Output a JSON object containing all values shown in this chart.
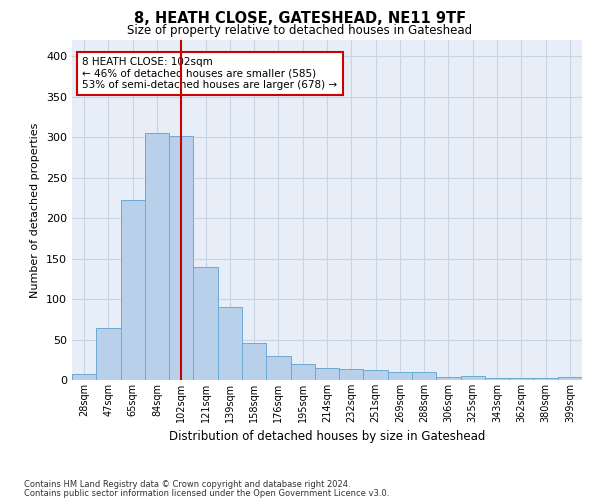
{
  "title": "8, HEATH CLOSE, GATESHEAD, NE11 9TF",
  "subtitle": "Size of property relative to detached houses in Gateshead",
  "xlabel": "Distribution of detached houses by size in Gateshead",
  "ylabel": "Number of detached properties",
  "categories": [
    "28sqm",
    "47sqm",
    "65sqm",
    "84sqm",
    "102sqm",
    "121sqm",
    "139sqm",
    "158sqm",
    "176sqm",
    "195sqm",
    "214sqm",
    "232sqm",
    "251sqm",
    "269sqm",
    "288sqm",
    "306sqm",
    "325sqm",
    "343sqm",
    "362sqm",
    "380sqm",
    "399sqm"
  ],
  "values": [
    8,
    64,
    222,
    305,
    302,
    140,
    90,
    46,
    30,
    20,
    15,
    14,
    12,
    10,
    10,
    4,
    5,
    3,
    3,
    3,
    4
  ],
  "bar_color": "#b8d0ea",
  "bar_edge_color": "#6aaad4",
  "vline_x_idx": 4,
  "vline_color": "#cc0000",
  "annotation_text": "8 HEATH CLOSE: 102sqm\n← 46% of detached houses are smaller (585)\n53% of semi-detached houses are larger (678) →",
  "annotation_box_color": "#ffffff",
  "annotation_box_edge": "#cc0000",
  "ylim": [
    0,
    420
  ],
  "yticks": [
    0,
    50,
    100,
    150,
    200,
    250,
    300,
    350,
    400
  ],
  "grid_color": "#c8d4e4",
  "background_color": "#e8eef8",
  "footer_line1": "Contains HM Land Registry data © Crown copyright and database right 2024.",
  "footer_line2": "Contains public sector information licensed under the Open Government Licence v3.0."
}
